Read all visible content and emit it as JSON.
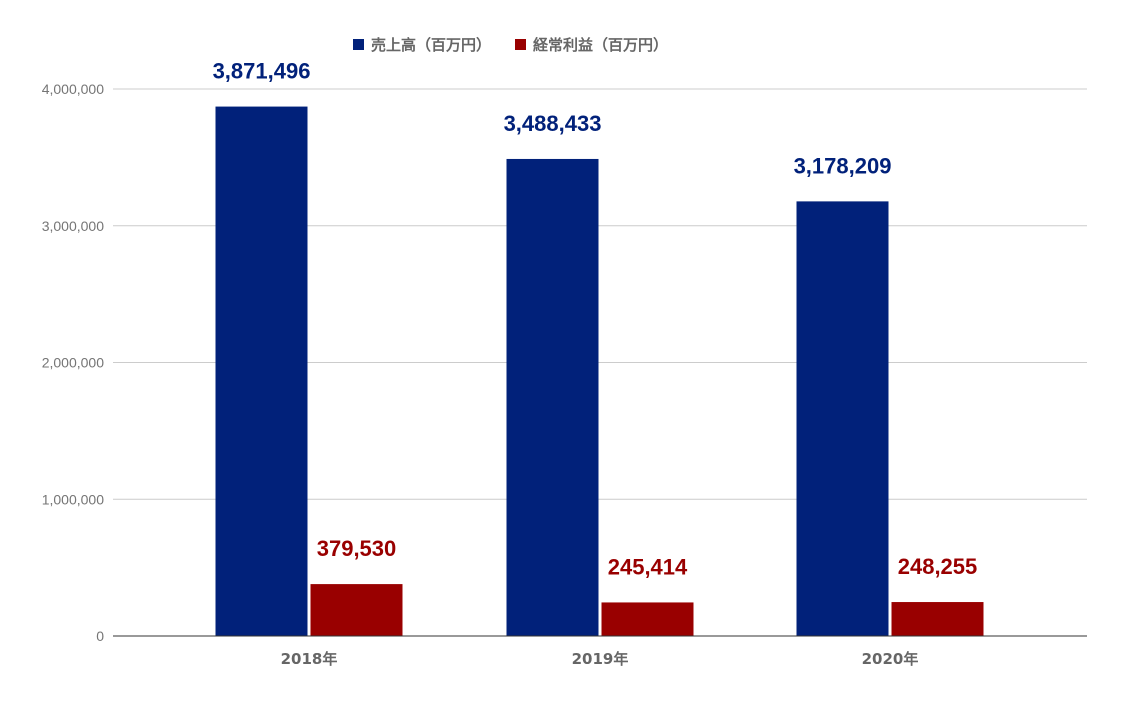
{
  "chart_data": {
    "type": "bar",
    "categories": [
      "2018年",
      "2019年",
      "2020年"
    ],
    "series": [
      {
        "name": "売上高（百万円）",
        "values": [
          3871496,
          3488433,
          3178209
        ],
        "color": "#01217A"
      },
      {
        "name": "経常利益（百万円）",
        "values": [
          379530,
          245414,
          248255
        ],
        "color": "#990000"
      }
    ],
    "data_labels": [
      [
        "3,871,496",
        "3,488,433",
        "3,178,209"
      ],
      [
        "379,530",
        "245,414",
        "248,255"
      ]
    ],
    "y_ticks": [
      0,
      1000000,
      2000000,
      3000000,
      4000000
    ],
    "y_tick_labels": [
      "0",
      "1,000,000",
      "2,000,000",
      "3,000,000",
      "4,000,000"
    ],
    "ylim": [
      0,
      4000000
    ],
    "grid": true,
    "legend_position": "top-center",
    "title": "",
    "xlabel": "",
    "ylabel": ""
  }
}
